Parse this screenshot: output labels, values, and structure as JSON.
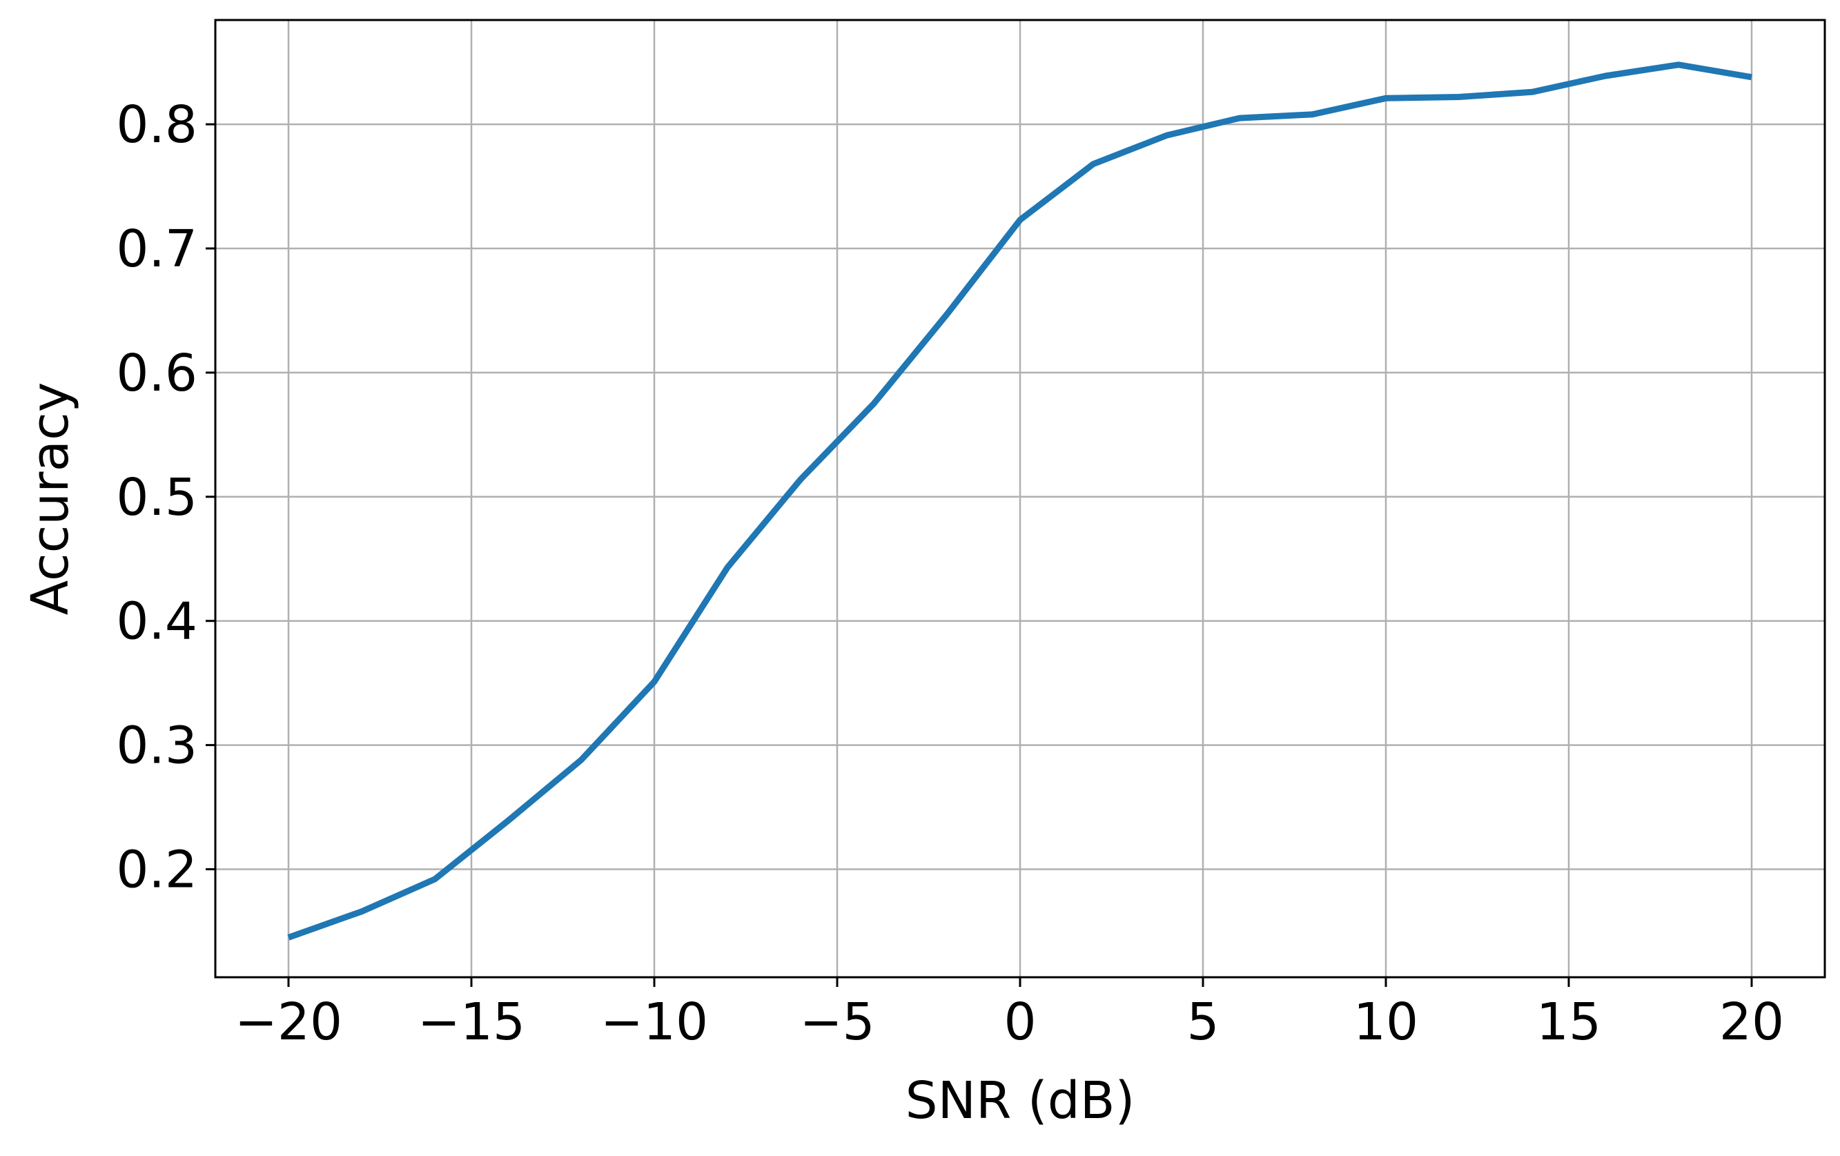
{
  "chart_data": {
    "type": "line",
    "title": "",
    "xlabel": "SNR (dB)",
    "ylabel": "Accuracy",
    "xlim": [
      -22,
      22
    ],
    "ylim": [
      0.113,
      0.884
    ],
    "xticks": [
      -20,
      -15,
      -10,
      -5,
      0,
      5,
      10,
      15,
      20
    ],
    "xtick_labels": [
      "−20",
      "−15",
      "−10",
      "−5",
      "0",
      "5",
      "10",
      "15",
      "20"
    ],
    "yticks": [
      0.2,
      0.3,
      0.4,
      0.5,
      0.6,
      0.7,
      0.8
    ],
    "ytick_labels": [
      "0.2",
      "0.3",
      "0.4",
      "0.5",
      "0.6",
      "0.7",
      "0.8"
    ],
    "grid": true,
    "legend": "none",
    "series": [
      {
        "color": "#1f77b4",
        "x": [
          -20,
          -18,
          -16,
          -14,
          -12,
          -10,
          -8,
          -6,
          -4,
          -2,
          0,
          2,
          4,
          6,
          8,
          10,
          12,
          14,
          16,
          18,
          20
        ],
        "y": [
          0.145,
          0.166,
          0.192,
          0.239,
          0.288,
          0.351,
          0.443,
          0.514,
          0.575,
          0.647,
          0.723,
          0.768,
          0.791,
          0.805,
          0.808,
          0.821,
          0.822,
          0.826,
          0.839,
          0.848,
          0.838
        ]
      }
    ]
  }
}
